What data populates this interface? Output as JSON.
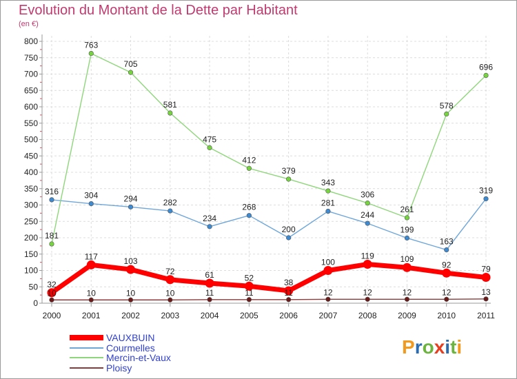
{
  "title": "Evolution du Montant de la Dette par Habitant",
  "subtitle": "(en €)",
  "logo": {
    "text": "Proxiti",
    "colors": [
      "#f29a1f",
      "#2b6cb0",
      "#6cb33f",
      "#e63e1e",
      "#2b6cb0",
      "#6cb33f",
      "#f29a1f"
    ]
  },
  "chart_data": {
    "type": "line",
    "title": "Evolution du Montant de la Dette par Habitant",
    "ylabel": "(en €)",
    "xlabel": "",
    "x": [
      "2000",
      "2001",
      "2002",
      "2003",
      "2004",
      "2005",
      "2006",
      "2007",
      "2008",
      "2009",
      "2010",
      "2011"
    ],
    "ylim": [
      0,
      800
    ],
    "yticks": [
      "0",
      "50",
      "100",
      "150",
      "200",
      "250",
      "300",
      "350",
      "400",
      "450",
      "500",
      "550",
      "600",
      "650",
      "700",
      "750",
      "800"
    ],
    "grid": true,
    "legend_position": "bottom-left",
    "series": [
      {
        "name": "VAUXBUIN",
        "values": [
          32,
          117,
          103,
          72,
          61,
          52,
          38,
          100,
          119,
          109,
          92,
          79
        ],
        "color": "#ff0000",
        "marker": "#ff0000"
      },
      {
        "name": "Courmelles",
        "values": [
          316,
          304,
          294,
          282,
          234,
          268,
          200,
          281,
          244,
          199,
          163,
          319
        ],
        "color": "#6ea6da",
        "marker": "#3d8ad0"
      },
      {
        "name": "Mercin-et-Vaux",
        "values": [
          181,
          763,
          705,
          581,
          475,
          412,
          379,
          343,
          306,
          261,
          578,
          696
        ],
        "color": "#8ed67a",
        "marker": "#76d43e"
      },
      {
        "name": "Ploisy",
        "values": [
          10,
          10,
          10,
          10,
          11,
          11,
          11,
          12,
          12,
          12,
          12,
          13
        ],
        "color": "#8a3a3a",
        "marker": "#6b1a1a"
      }
    ]
  }
}
